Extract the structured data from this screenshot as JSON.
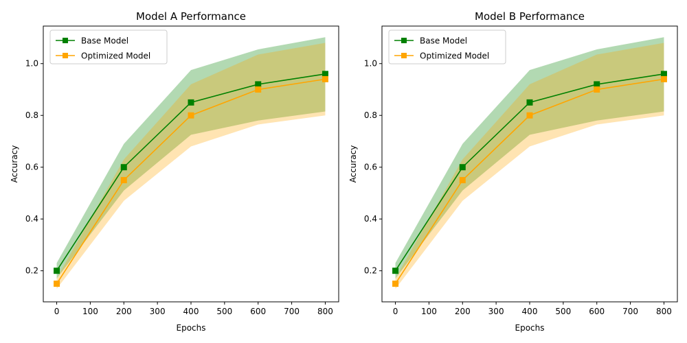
{
  "chart_data": [
    {
      "type": "line",
      "title": "Model A Performance",
      "xlabel": "Epochs",
      "ylabel": "Accuracy",
      "x": [
        0,
        200,
        400,
        600,
        800
      ],
      "xlim": [
        -40,
        840
      ],
      "ylim": [
        0.08,
        1.145
      ],
      "xticks": [
        0,
        100,
        200,
        300,
        400,
        500,
        600,
        700,
        800
      ],
      "yticks": [
        0.2,
        0.4,
        0.6,
        0.8,
        1.0
      ],
      "xtick_labels": [
        "0",
        "100",
        "200",
        "300",
        "400",
        "500",
        "600",
        "700",
        "800"
      ],
      "ytick_labels": [
        "0.2",
        "0.4",
        "0.6",
        "0.8",
        "1.0"
      ],
      "grid": false,
      "legend_position": "top-left",
      "series": [
        {
          "name": "Base Model",
          "color": "#008000",
          "band_color": "#008000",
          "marker": "square",
          "values": [
            0.2,
            0.6,
            0.85,
            0.92,
            0.96
          ],
          "upper": [
            0.23,
            0.69,
            0.975,
            1.055,
            1.102
          ],
          "lower": [
            0.17,
            0.51,
            0.725,
            0.78,
            0.815
          ]
        },
        {
          "name": "Optimized Model",
          "color": "#FFA500",
          "band_color": "#FFA500",
          "marker": "square",
          "values": [
            0.15,
            0.55,
            0.8,
            0.9,
            0.94
          ],
          "upper": [
            0.17,
            0.63,
            0.92,
            1.035,
            1.08
          ],
          "lower": [
            0.13,
            0.47,
            0.68,
            0.765,
            0.8
          ]
        }
      ]
    },
    {
      "type": "line",
      "title": "Model B Performance",
      "xlabel": "Epochs",
      "ylabel": "Accuracy",
      "x": [
        0,
        200,
        400,
        600,
        800
      ],
      "xlim": [
        -40,
        840
      ],
      "ylim": [
        0.08,
        1.145
      ],
      "xticks": [
        0,
        100,
        200,
        300,
        400,
        500,
        600,
        700,
        800
      ],
      "yticks": [
        0.2,
        0.4,
        0.6,
        0.8,
        1.0
      ],
      "xtick_labels": [
        "0",
        "100",
        "200",
        "300",
        "400",
        "500",
        "600",
        "700",
        "800"
      ],
      "ytick_labels": [
        "0.2",
        "0.4",
        "0.6",
        "0.8",
        "1.0"
      ],
      "grid": false,
      "legend_position": "top-left",
      "series": [
        {
          "name": "Base Model",
          "color": "#008000",
          "band_color": "#008000",
          "marker": "square",
          "values": [
            0.2,
            0.6,
            0.85,
            0.92,
            0.96
          ],
          "upper": [
            0.23,
            0.69,
            0.975,
            1.055,
            1.102
          ],
          "lower": [
            0.17,
            0.51,
            0.725,
            0.78,
            0.815
          ]
        },
        {
          "name": "Optimized Model",
          "color": "#FFA500",
          "band_color": "#FFA500",
          "marker": "square",
          "values": [
            0.15,
            0.55,
            0.8,
            0.9,
            0.94
          ],
          "upper": [
            0.17,
            0.63,
            0.92,
            1.035,
            1.08
          ],
          "lower": [
            0.13,
            0.47,
            0.68,
            0.765,
            0.8
          ]
        }
      ]
    }
  ]
}
